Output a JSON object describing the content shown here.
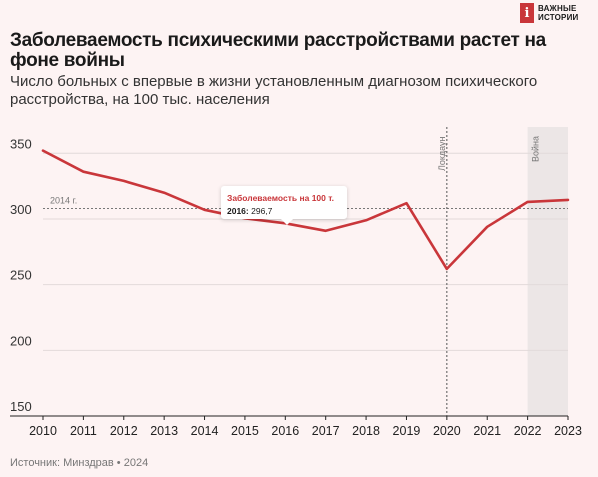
{
  "brand": {
    "logo_mark": "i",
    "line1": "ВАЖНЫЕ",
    "line2": "ИСТОРИИ"
  },
  "title": "Заболеваемость психическими расстройствами растет на фоне войны",
  "subtitle": "Число больных с впервые в жизни установленным диагнозом психического расстройства, на 100 тыс. населения",
  "source": "Источник: Минздрав • 2024",
  "tooltip": {
    "title": "Заболеваемость на 100 т.",
    "year": "2016:",
    "value": "296,7"
  },
  "chart_data": {
    "type": "line",
    "x": [
      2010,
      2011,
      2012,
      2013,
      2014,
      2015,
      2016,
      2017,
      2018,
      2019,
      2020,
      2021,
      2022,
      2023
    ],
    "series": [
      {
        "values": [
          352,
          336,
          329,
          320,
          307,
          300.5,
          296.7,
          291,
          299,
          312,
          262,
          294,
          313,
          314.5
        ]
      }
    ],
    "xlim": [
      2010,
      2023
    ],
    "ylim": [
      150,
      370
    ],
    "yticks": [
      350,
      300,
      250,
      200,
      150
    ],
    "reference_line": {
      "label": "2014 г.",
      "value": 308
    },
    "annotations": [
      {
        "label": "Локдаун",
        "x": 2020
      },
      {
        "label": "Война",
        "x_start": 2022,
        "x_end": 2023
      }
    ],
    "colors": {
      "line": "#c9363a",
      "shade": "#ece6e6",
      "grid": "#e2dada"
    }
  }
}
